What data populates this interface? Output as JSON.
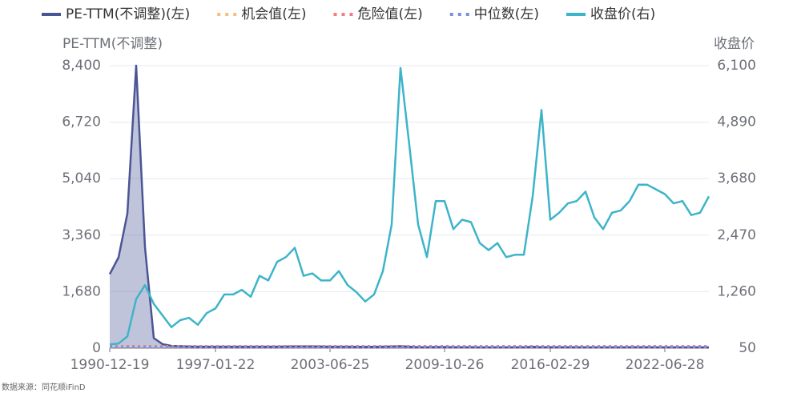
{
  "chart_data": {
    "type": "line",
    "source": "数据来源：同花顺iFinD",
    "y_label": "PE-TTM(不调整)",
    "y2_label": "收盘价",
    "categories": [
      "1990-12-19",
      null,
      null,
      null,
      null,
      null,
      null,
      null,
      null,
      null,
      null,
      null,
      "1997-01-22",
      null,
      null,
      null,
      null,
      null,
      null,
      null,
      null,
      null,
      null,
      null,
      null,
      "2003-06-25",
      null,
      null,
      null,
      null,
      null,
      null,
      null,
      null,
      null,
      null,
      null,
      null,
      "2009-10-26",
      null,
      null,
      null,
      null,
      null,
      null,
      null,
      null,
      null,
      null,
      null,
      "2016-02-29",
      null,
      null,
      null,
      null,
      null,
      null,
      null,
      null,
      null,
      null,
      null,
      null,
      "2022-06-28",
      null,
      null,
      null,
      null,
      null
    ],
    "ylim": [
      0,
      8400
    ],
    "yticks": [
      0,
      {
        "value": 1680,
        "label": "1,680"
      },
      {
        "value": 3360,
        "label": "3,360"
      },
      {
        "value": 5040,
        "label": "5,040"
      },
      {
        "value": 6720,
        "label": "6,720"
      },
      {
        "value": 8400,
        "label": "8,400"
      }
    ],
    "y2lim": [
      50,
      6100
    ],
    "y2ticks": [
      50,
      {
        "value": 1260,
        "label": "1,260"
      },
      {
        "value": 2470,
        "label": "2,470"
      },
      {
        "value": 3680,
        "label": "3,680"
      },
      {
        "value": 4890,
        "label": "4,890"
      },
      {
        "value": 6100,
        "label": "6,100"
      }
    ],
    "grid": true,
    "series": [
      {
        "name": "PE-TTM(不调整)(左)",
        "color": "#4a5596",
        "style": "solid",
        "area": true,
        "values": [
          2200,
          2700,
          4000,
          8400,
          3000,
          300,
          120,
          70,
          60,
          50,
          45,
          45,
          45,
          45,
          45,
          45,
          45,
          45,
          45,
          45,
          50,
          55,
          55,
          55,
          50,
          45,
          45,
          45,
          40,
          40,
          40,
          45,
          50,
          60,
          45,
          30,
          30,
          35,
          35,
          30,
          30,
          30,
          25,
          25,
          25,
          25,
          25,
          30,
          40,
          30,
          30,
          30,
          30,
          30,
          25,
          25,
          25,
          25,
          25,
          30,
          30,
          30,
          25,
          25,
          25,
          25,
          25,
          25,
          25
        ]
      },
      {
        "name": "机会值(左)",
        "color": "#f6c17f",
        "style": "dotted",
        "values": [
          15,
          15,
          15,
          15,
          15,
          15,
          15,
          15,
          15,
          15,
          15,
          15,
          15,
          15,
          15,
          15,
          15,
          15,
          15,
          15,
          15,
          15,
          15,
          15,
          15,
          15,
          15,
          15,
          15,
          15,
          15,
          15,
          15,
          15,
          15,
          15,
          15,
          15,
          15,
          15,
          15,
          15,
          15,
          15,
          15,
          15,
          15,
          15,
          15,
          15,
          15,
          15,
          15,
          15,
          15,
          15,
          15,
          15,
          15,
          15,
          15,
          15,
          15,
          15,
          15,
          15,
          15,
          15,
          15
        ]
      },
      {
        "name": "危险值(左)",
        "color": "#f27e7e",
        "style": "dotted",
        "values": [
          60,
          60,
          60,
          60,
          60,
          60,
          60,
          60,
          60,
          60,
          60,
          60,
          60,
          60,
          60,
          60,
          60,
          60,
          60,
          60,
          60,
          60,
          60,
          60,
          60,
          60,
          60,
          60,
          60,
          60,
          60,
          60,
          60,
          60,
          60,
          60,
          60,
          60,
          60,
          60,
          60,
          60,
          60,
          60,
          60,
          60,
          60,
          60,
          60,
          60,
          60,
          60,
          60,
          60,
          60,
          60,
          60,
          60,
          60,
          60,
          60,
          60,
          60,
          60,
          60,
          60,
          60,
          60,
          60
        ]
      },
      {
        "name": "中位数(左)",
        "color": "#7c8ee3",
        "style": "dotted",
        "values": [
          30,
          30,
          30,
          30,
          30,
          30,
          30,
          30,
          30,
          30,
          30,
          30,
          30,
          30,
          30,
          30,
          30,
          30,
          30,
          30,
          30,
          30,
          30,
          30,
          30,
          30,
          30,
          30,
          30,
          30,
          30,
          30,
          30,
          30,
          30,
          30,
          30,
          30,
          30,
          30,
          30,
          30,
          30,
          30,
          30,
          30,
          30,
          30,
          30,
          30,
          30,
          30,
          30,
          30,
          30,
          30,
          30,
          30,
          30,
          30,
          30,
          30,
          30,
          30,
          30,
          30,
          30,
          30,
          30
        ]
      },
      {
        "name": "收盘价(右)",
        "color": "#3db4c9",
        "style": "solid",
        "axis": "y2",
        "values": [
          130,
          150,
          300,
          1100,
          1400,
          1000,
          750,
          500,
          650,
          700,
          550,
          800,
          900,
          1200,
          1200,
          1300,
          1150,
          1600,
          1500,
          1900,
          2000,
          2200,
          1600,
          1650,
          1500,
          1500,
          1700,
          1400,
          1250,
          1050,
          1200,
          1700,
          2700,
          6050,
          4400,
          2700,
          2000,
          3200,
          3200,
          2600,
          2800,
          2750,
          2300,
          2150,
          2300,
          2000,
          2050,
          2050,
          3300,
          5150,
          2800,
          2950,
          3150,
          3200,
          3400,
          2850,
          2600,
          2950,
          3000,
          3200,
          3550,
          3550,
          3450,
          3350,
          3150,
          3200,
          2900,
          2950,
          3300
        ]
      }
    ]
  }
}
